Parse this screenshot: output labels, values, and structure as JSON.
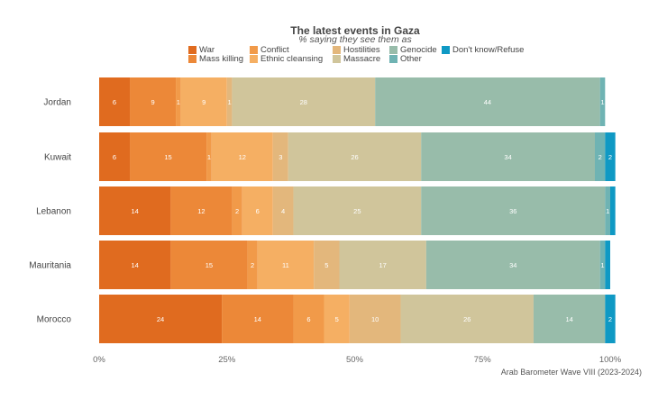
{
  "chart_data": {
    "type": "bar",
    "orientation": "horizontal",
    "stacked": true,
    "title": "The latest events in Gaza",
    "subtitle": "% saying they see them as",
    "source": "Arab Barometer Wave VIII (2023-2024)",
    "categories": [
      "Jordan",
      "Kuwait",
      "Lebanon",
      "Mauritania",
      "Morocco"
    ],
    "xlim": [
      0,
      100
    ],
    "x_tick_labels": [
      "0%",
      "25%",
      "50%",
      "75%",
      "100%"
    ],
    "series": [
      {
        "name": "War",
        "color": "#E06B1F",
        "values": [
          6,
          6,
          14,
          14,
          24
        ]
      },
      {
        "name": "Mass killing",
        "color": "#EC8838",
        "values": [
          9,
          15,
          12,
          15,
          14
        ]
      },
      {
        "name": "Conflict",
        "color": "#F19A49",
        "values": [
          1,
          1,
          2,
          2,
          6
        ]
      },
      {
        "name": "Ethnic cleansing",
        "color": "#F5AF63",
        "values": [
          9,
          12,
          6,
          11,
          5
        ]
      },
      {
        "name": "Hostilities",
        "color": "#E3B77C",
        "values": [
          1,
          3,
          4,
          5,
          10
        ]
      },
      {
        "name": "Massacre",
        "color": "#D0C59B",
        "values": [
          28,
          26,
          25,
          17,
          26
        ]
      },
      {
        "name": "Genocide",
        "color": "#98BCAA",
        "values": [
          44,
          34,
          36,
          34,
          14
        ]
      },
      {
        "name": "Other",
        "color": "#6FB3B3",
        "values": [
          1,
          2,
          1,
          1,
          0
        ]
      },
      {
        "name": "Don't know/Refuse",
        "color": "#0F99C4",
        "values": [
          0,
          2,
          1,
          1,
          2
        ]
      }
    ],
    "data_labels": [
      [
        "6",
        "9",
        "1",
        "9",
        "1",
        "28",
        "44",
        "1",
        ""
      ],
      [
        "6",
        "15",
        "1",
        "12",
        "3",
        "26",
        "34",
        "2",
        "2"
      ],
      [
        "14",
        "12",
        "2",
        "6",
        "4",
        "25",
        "36",
        "1",
        ""
      ],
      [
        "14",
        "15",
        "2",
        "11",
        "5",
        "17",
        "34",
        "1",
        ""
      ],
      [
        "24",
        "14",
        "6",
        "5",
        "10",
        "26",
        "14",
        "",
        "2"
      ]
    ],
    "legend_order": [
      [
        "War",
        "Conflict",
        "Hostilities",
        "Genocide",
        "Don't know/Refuse"
      ],
      [
        "Mass killing",
        "Ethnic cleansing",
        "Massacre",
        "Other"
      ]
    ]
  }
}
